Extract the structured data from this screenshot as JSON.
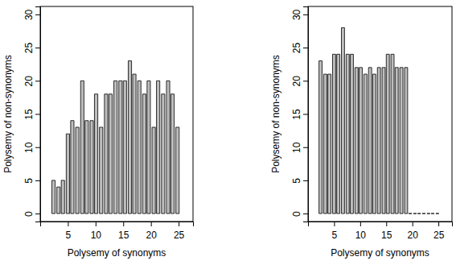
{
  "chart_data": [
    {
      "type": "bar",
      "x_label": "Polysemy of synonyms",
      "y_label": "Polysemy of non-synonyms",
      "x": [
        2.4,
        3.3,
        4.1,
        5.0,
        5.8,
        6.7,
        7.6,
        8.4,
        9.3,
        10.1,
        11.0,
        11.9,
        12.7,
        13.6,
        14.5,
        15.3,
        16.2,
        17.0,
        17.9,
        18.8,
        19.6,
        20.5,
        21.3,
        22.2,
        23.1,
        23.9,
        24.8
      ],
      "values": [
        5,
        4,
        5,
        12,
        14,
        13,
        20,
        14,
        14,
        18,
        13,
        18,
        18,
        20,
        20,
        20,
        23,
        21,
        20,
        18,
        20,
        13,
        20,
        18,
        20,
        18,
        13
      ],
      "color": "#bebebe",
      "xlim": [
        0,
        27.6
      ],
      "xticks": [
        5,
        10,
        15,
        20,
        25
      ],
      "ylim": [
        -1.2,
        31.2
      ],
      "yticks": [
        0,
        5,
        10,
        15,
        20,
        25,
        30
      ]
    },
    {
      "type": "bar",
      "x_label": "Polysemy of synonyms",
      "y_label": "Polysemy of non-synonyms",
      "x": [
        2.4,
        3.3,
        4.1,
        5.0,
        5.8,
        6.7,
        7.6,
        8.4,
        9.3,
        10.1,
        11.0,
        11.9,
        12.7,
        13.6,
        14.5,
        15.3,
        16.2,
        17.0,
        17.9,
        18.8,
        19.6,
        20.5,
        21.3,
        22.2,
        23.1,
        23.9,
        24.8
      ],
      "values": [
        23,
        21,
        21,
        24,
        24,
        28,
        24,
        24,
        22,
        22,
        21,
        22,
        21,
        22,
        22,
        24,
        24,
        22,
        22,
        22,
        0,
        0,
        0,
        0,
        0,
        0,
        0
      ],
      "color": "#bebebe",
      "xlim": [
        0,
        27.6
      ],
      "xticks": [
        5,
        10,
        15,
        20,
        25
      ],
      "ylim": [
        -1.2,
        31.2
      ],
      "yticks": [
        0,
        5,
        10,
        15,
        20,
        25,
        30
      ]
    }
  ]
}
